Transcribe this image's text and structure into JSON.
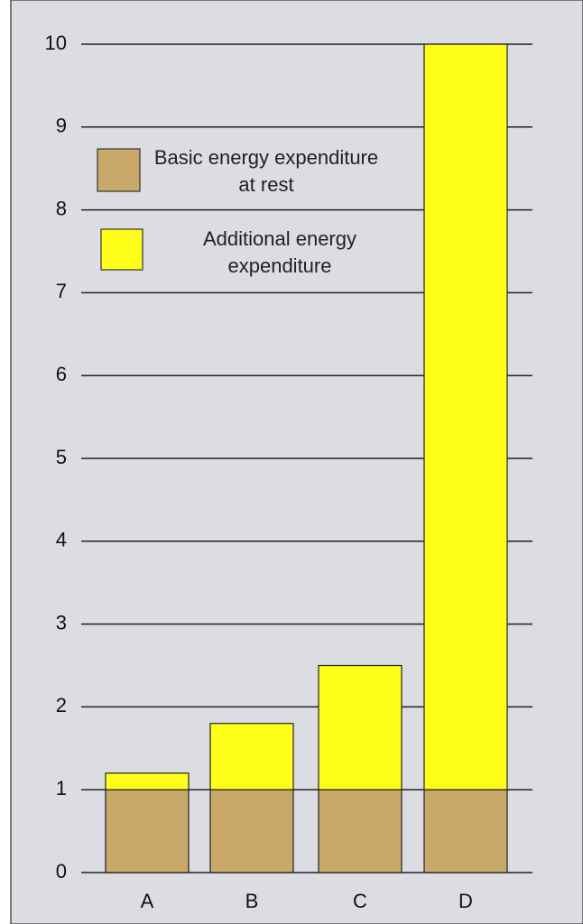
{
  "chart_data": {
    "type": "stacked_bar",
    "categories": [
      "A",
      "B",
      "C",
      "D"
    ],
    "series": [
      {
        "name": "Basic energy expenditure at rest",
        "color": "#c9a96a",
        "values": [
          1,
          1,
          1,
          1
        ]
      },
      {
        "name": "Additional energy expenditure",
        "color": "#ffff1a",
        "values": [
          0.2,
          0.8,
          1.5,
          9
        ]
      }
    ],
    "ylim": [
      0,
      10
    ],
    "yticks": [
      0,
      1,
      2,
      3,
      4,
      5,
      6,
      7,
      8,
      9,
      10
    ],
    "grid": true
  }
}
